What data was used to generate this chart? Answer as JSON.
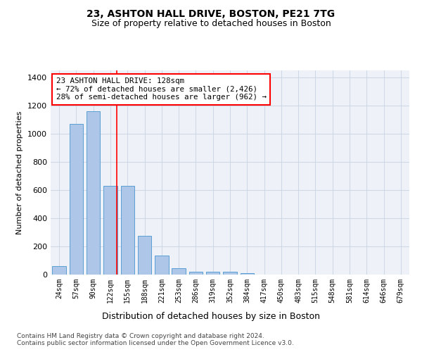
{
  "title1": "23, ASHTON HALL DRIVE, BOSTON, PE21 7TG",
  "title2": "Size of property relative to detached houses in Boston",
  "xlabel": "Distribution of detached houses by size in Boston",
  "ylabel": "Number of detached properties",
  "bar_labels": [
    "24sqm",
    "57sqm",
    "90sqm",
    "122sqm",
    "155sqm",
    "188sqm",
    "221sqm",
    "253sqm",
    "286sqm",
    "319sqm",
    "352sqm",
    "384sqm",
    "417sqm",
    "450sqm",
    "483sqm",
    "515sqm",
    "548sqm",
    "581sqm",
    "614sqm",
    "646sqm",
    "679sqm"
  ],
  "bar_values": [
    62,
    1070,
    1160,
    630,
    630,
    275,
    135,
    45,
    20,
    20,
    20,
    10,
    0,
    0,
    0,
    0,
    0,
    0,
    0,
    0,
    0
  ],
  "bar_color": "#aec6e8",
  "bar_edge_color": "#5a9fd4",
  "grid_color": "#d0d8e8",
  "bg_color": "#eef2f8",
  "red_line_x": 3.36,
  "annotation_title": "23 ASHTON HALL DRIVE: 128sqm",
  "annotation_line1": "← 72% of detached houses are smaller (2,426)",
  "annotation_line2": "28% of semi-detached houses are larger (962) →",
  "footnote1": "Contains HM Land Registry data © Crown copyright and database right 2024.",
  "footnote2": "Contains public sector information licensed under the Open Government Licence v3.0.",
  "ylim": [
    0,
    1450
  ],
  "yticks": [
    0,
    200,
    400,
    600,
    800,
    1000,
    1200,
    1400
  ]
}
